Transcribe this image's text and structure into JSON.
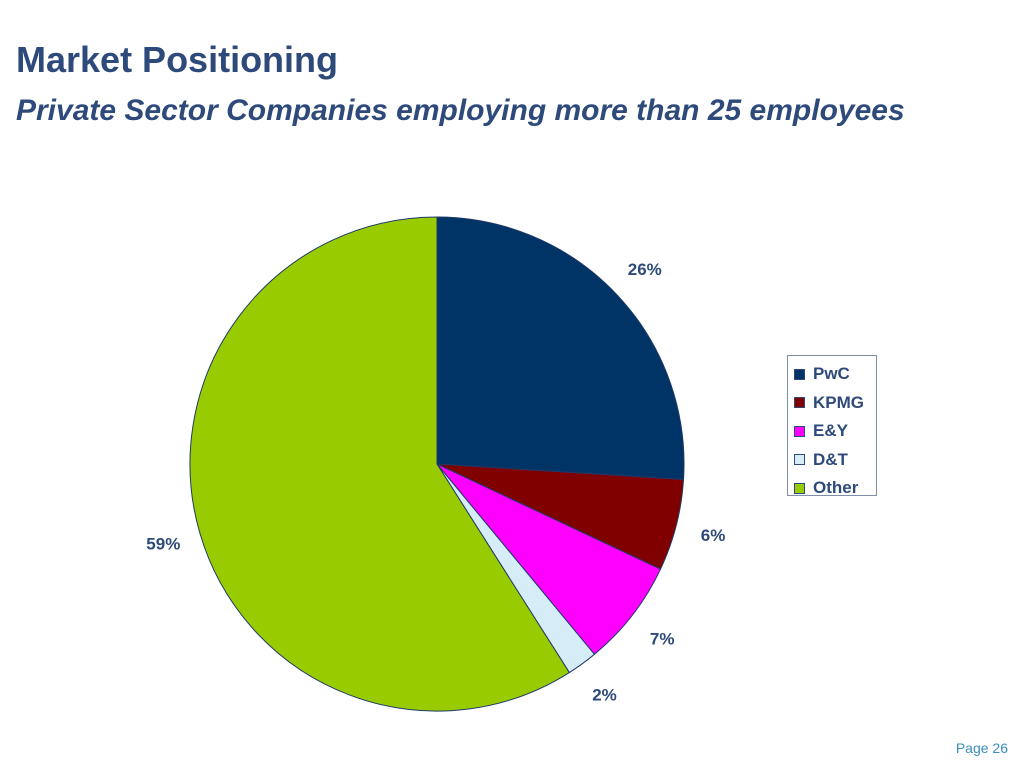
{
  "page": {
    "title": "Market Positioning",
    "subtitle": "Private Sector Companies employing more than 25 employees",
    "page_number": "Page 26"
  },
  "colors": {
    "title": "#2e4a7a",
    "page_number": "#3a8fc0"
  },
  "chart_data": {
    "type": "pie",
    "title": "",
    "legend_position": "right",
    "categories": [
      "PwC",
      "KPMG",
      "E&Y",
      "D&T",
      "Other"
    ],
    "values": [
      26,
      6,
      7,
      2,
      59
    ],
    "labels": [
      "26%",
      "6%",
      "7%",
      "2%",
      "59%"
    ],
    "colors": [
      "#003366",
      "#800000",
      "#ff00ff",
      "#d6ecf7",
      "#99cc00"
    ],
    "start_angle_deg": 0,
    "direction": "clockwise"
  }
}
